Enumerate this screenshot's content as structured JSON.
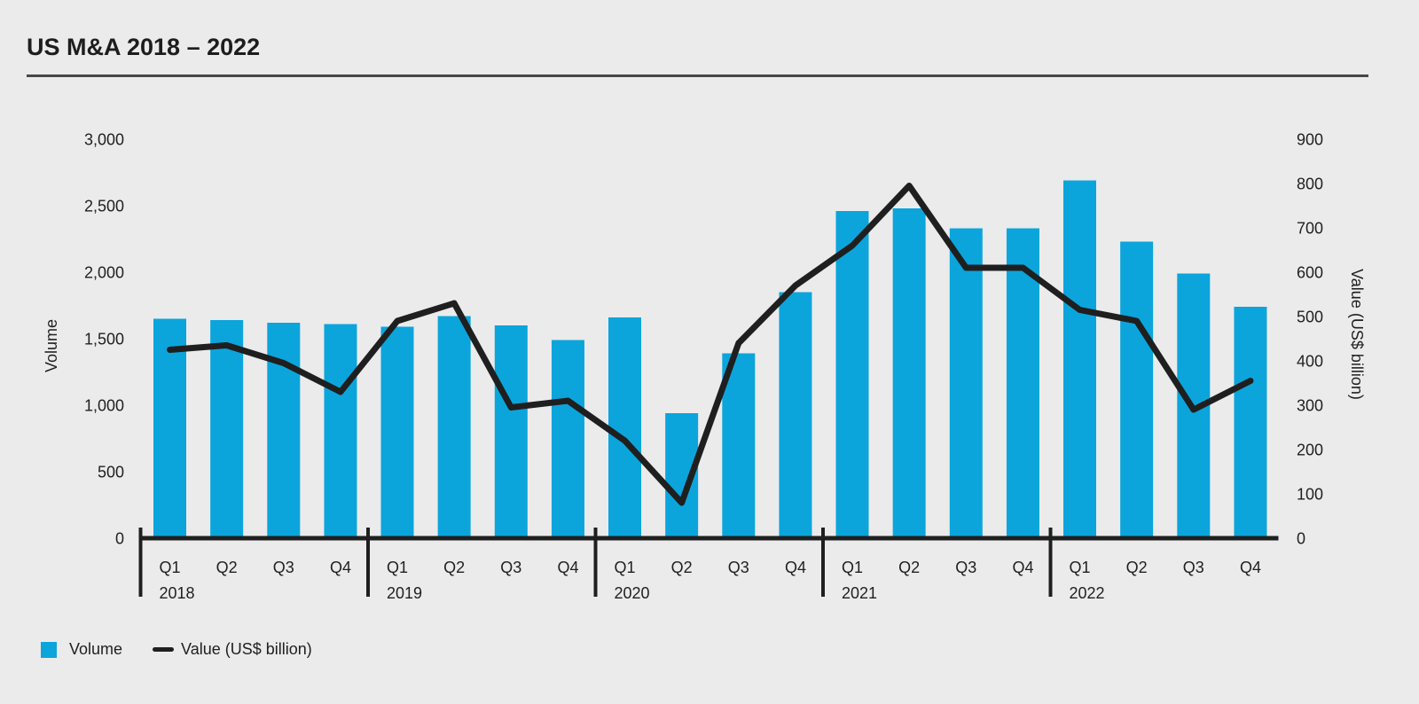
{
  "page": {
    "title": "US M&A 2018 – 2022",
    "background_color": "#ebebeb"
  },
  "legend": {
    "volume_label": "Volume",
    "value_label": "Value (US$ billion)"
  },
  "chart_data": {
    "type": "bar+line",
    "title": "US M&A 2018 – 2022",
    "groups": [
      {
        "year": "2018",
        "quarters": [
          "Q1",
          "Q2",
          "Q3",
          "Q4"
        ]
      },
      {
        "year": "2019",
        "quarters": [
          "Q1",
          "Q2",
          "Q3",
          "Q4"
        ]
      },
      {
        "year": "2020",
        "quarters": [
          "Q1",
          "Q2",
          "Q3",
          "Q4"
        ]
      },
      {
        "year": "2021",
        "quarters": [
          "Q1",
          "Q2",
          "Q3",
          "Q4"
        ]
      },
      {
        "year": "2022",
        "quarters": [
          "Q1",
          "Q2",
          "Q3",
          "Q4"
        ]
      }
    ],
    "series": [
      {
        "name": "Volume",
        "chart": "bar",
        "axis": "left",
        "values": [
          1650,
          1640,
          1620,
          1610,
          1590,
          1670,
          1600,
          1490,
          1660,
          940,
          1390,
          1850,
          2460,
          2480,
          2330,
          2330,
          2690,
          2230,
          1990,
          1740
        ]
      },
      {
        "name": "Value (US$ billion)",
        "chart": "line",
        "axis": "right",
        "values": [
          425,
          435,
          395,
          330,
          490,
          530,
          295,
          310,
          220,
          80,
          440,
          570,
          660,
          795,
          610,
          610,
          515,
          490,
          290,
          355
        ]
      }
    ],
    "left_axis": {
      "title": "Volume",
      "min": 0,
      "max": 3000,
      "tick_step": 500,
      "tick_labels": [
        "0",
        "500",
        "1,000",
        "1,500",
        "2,000",
        "2,500",
        "3,000"
      ]
    },
    "right_axis": {
      "title": "Value (US$ billion)",
      "min": 0,
      "max": 900,
      "tick_step": 100,
      "tick_labels": [
        "0",
        "100",
        "200",
        "300",
        "400",
        "500",
        "600",
        "700",
        "800",
        "900"
      ]
    },
    "colors": {
      "bar": "#0ba5dc",
      "line": "#1f1f1f",
      "axis": "#1f1f1f"
    },
    "grid": false,
    "legend_position": "bottom-left"
  }
}
